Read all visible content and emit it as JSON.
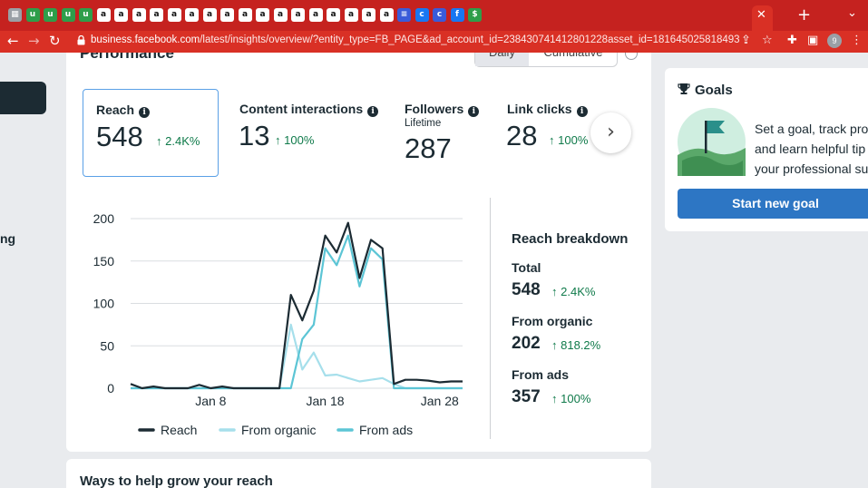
{
  "browser": {
    "url_domain": "business.facebook.com",
    "url_path": "/latest/insights/overview/?entity_type=FB_PAGE&ad_account_id=238430741412801228asset_id=181645025818493",
    "profile_initial": "9",
    "colors": {
      "tabbar": "#c5221f",
      "toolbar": "#d93025"
    }
  },
  "performance": {
    "title": "Performance",
    "toggle": [
      "Daily",
      "Cumulative"
    ],
    "metrics": [
      {
        "label": "Reach",
        "value": "548",
        "delta": "2.4K%"
      },
      {
        "label": "Content interactions",
        "value": "13",
        "delta": "100%"
      },
      {
        "label": "Followers",
        "sub": "Lifetime",
        "value": "287"
      },
      {
        "label": "Link clicks",
        "value": "28",
        "delta": "100%"
      }
    ]
  },
  "chart_data": {
    "type": "line",
    "y_ticks": [
      "200",
      "150",
      "100",
      "50",
      "0"
    ],
    "x_ticks": [
      "Jan 8",
      "Jan 18",
      "Jan 28"
    ],
    "ylim": [
      0,
      200
    ],
    "x": [
      1,
      2,
      3,
      4,
      5,
      6,
      7,
      8,
      9,
      10,
      11,
      12,
      13,
      14,
      15,
      16,
      17,
      18,
      19,
      20,
      21,
      22,
      23,
      24,
      25,
      26,
      27,
      28,
      29,
      30
    ],
    "series": [
      {
        "name": "Reach",
        "color": "#1c2b33",
        "values": [
          5,
          0,
          2,
          0,
          0,
          0,
          4,
          0,
          2,
          0,
          0,
          0,
          0,
          0,
          110,
          80,
          115,
          180,
          160,
          195,
          130,
          175,
          165,
          5,
          10,
          10,
          9,
          7,
          8,
          8
        ]
      },
      {
        "name": "From organic",
        "color": "#a6dfeb",
        "values": [
          0,
          0,
          0,
          0,
          0,
          0,
          0,
          0,
          0,
          0,
          0,
          0,
          0,
          0,
          75,
          22,
          42,
          15,
          16,
          12,
          8,
          10,
          12,
          5,
          0,
          0,
          0,
          0,
          0,
          0
        ]
      },
      {
        "name": "From ads",
        "color": "#5cc5d5",
        "values": [
          0,
          0,
          0,
          0,
          0,
          0,
          0,
          0,
          0,
          0,
          0,
          0,
          0,
          0,
          0,
          58,
          75,
          165,
          145,
          180,
          120,
          165,
          152,
          0,
          0,
          0,
          0,
          0,
          0,
          0
        ]
      }
    ]
  },
  "breakdown": {
    "title": "Reach breakdown",
    "items": [
      {
        "label": "Total",
        "value": "548",
        "delta": "2.4K%"
      },
      {
        "label": "From organic",
        "value": "202",
        "delta": "818.2%"
      },
      {
        "label": "From ads",
        "value": "357",
        "delta": "100%"
      }
    ]
  },
  "goals": {
    "title": "Goals",
    "text_lines": [
      "Set a goal, track pro",
      "and learn helpful tip",
      "your professional su"
    ],
    "button": "Start new goal"
  },
  "bottom": {
    "title": "Ways to help grow your reach"
  },
  "left_partial_text": "ng"
}
